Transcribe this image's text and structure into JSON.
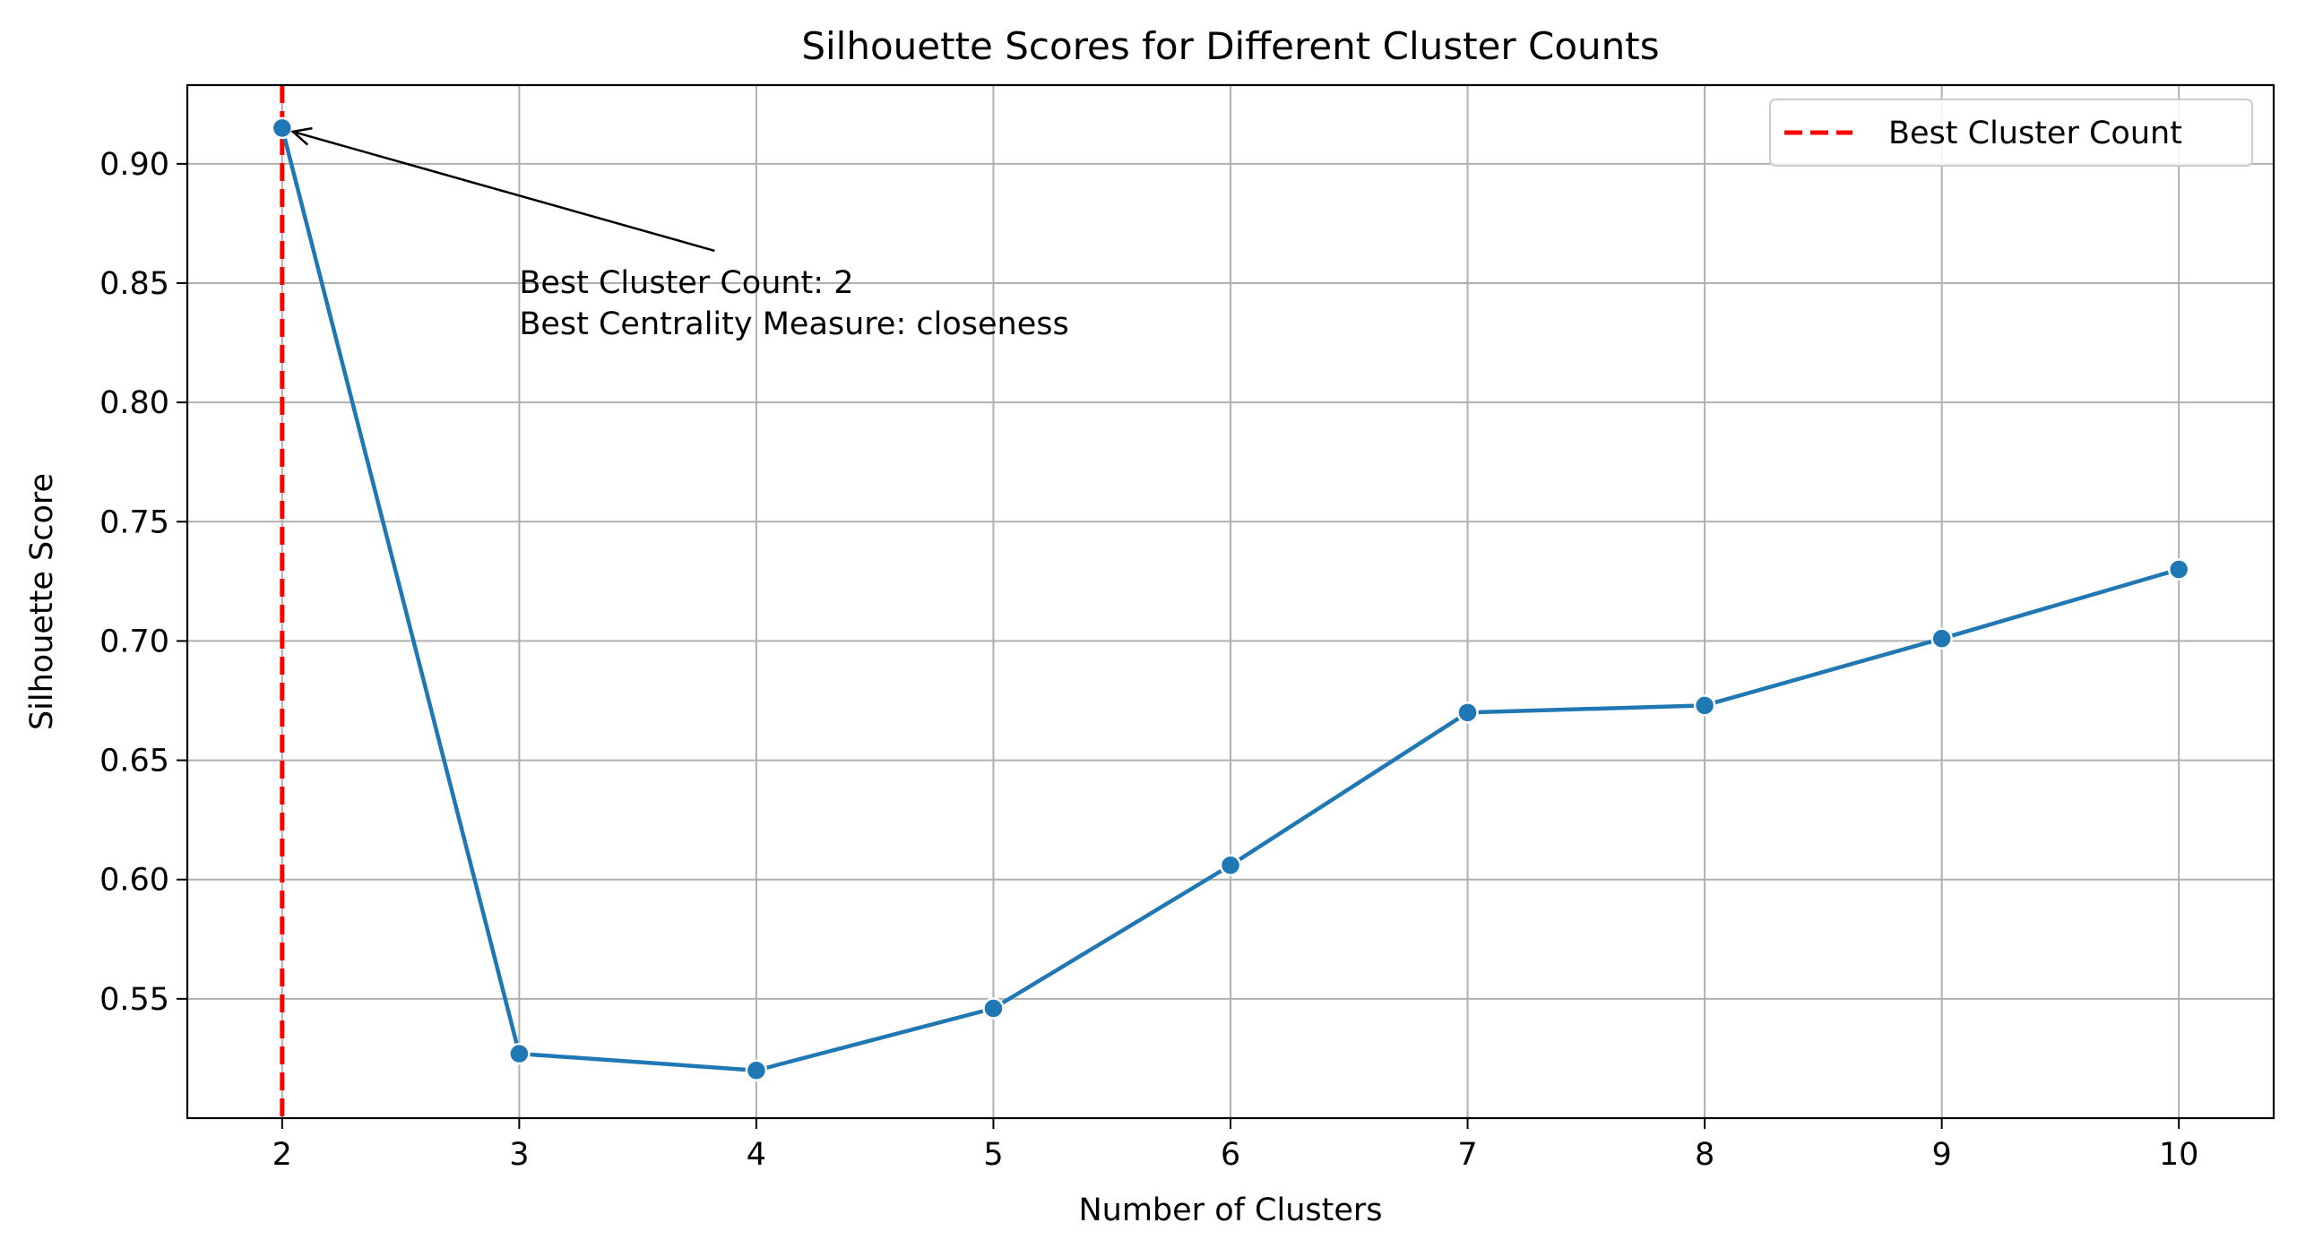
{
  "chart_data": {
    "type": "line",
    "title": "Silhouette Scores for Different Cluster Counts",
    "xlabel": "Number of Clusters",
    "ylabel": "Silhouette Score",
    "x": [
      2,
      3,
      4,
      5,
      6,
      7,
      8,
      9,
      10
    ],
    "xticks": [
      "2",
      "3",
      "4",
      "5",
      "6",
      "7",
      "8",
      "9",
      "10"
    ],
    "yticks": [
      "0.55",
      "0.60",
      "0.65",
      "0.70",
      "0.75",
      "0.80",
      "0.85",
      "0.90"
    ],
    "ytick_values": [
      0.55,
      0.6,
      0.65,
      0.7,
      0.75,
      0.8,
      0.85,
      0.9
    ],
    "xlim": [
      1.6,
      10.4
    ],
    "ylim": [
      0.5,
      0.933
    ],
    "grid": true,
    "series": [
      {
        "values": [
          0.915,
          0.527,
          0.52,
          0.546,
          0.606,
          0.67,
          0.673,
          0.701,
          0.73
        ],
        "color": "#1f77b4",
        "marker": "circle"
      }
    ],
    "reference_line": {
      "x": 2,
      "style": "dashed",
      "color": "#ff0000",
      "label": "Best Cluster Count"
    },
    "annotation": {
      "lines": [
        "Best Cluster Count: 2",
        "Best Centrality Measure: closeness"
      ],
      "points_to": {
        "x": 2,
        "y": 0.915
      },
      "text_at": {
        "x": 3,
        "y": 0.832
      }
    },
    "legend": {
      "position": "top-right",
      "entries": [
        {
          "label": "Best Cluster Count",
          "color": "#ff0000",
          "style": "dashed"
        }
      ]
    }
  }
}
